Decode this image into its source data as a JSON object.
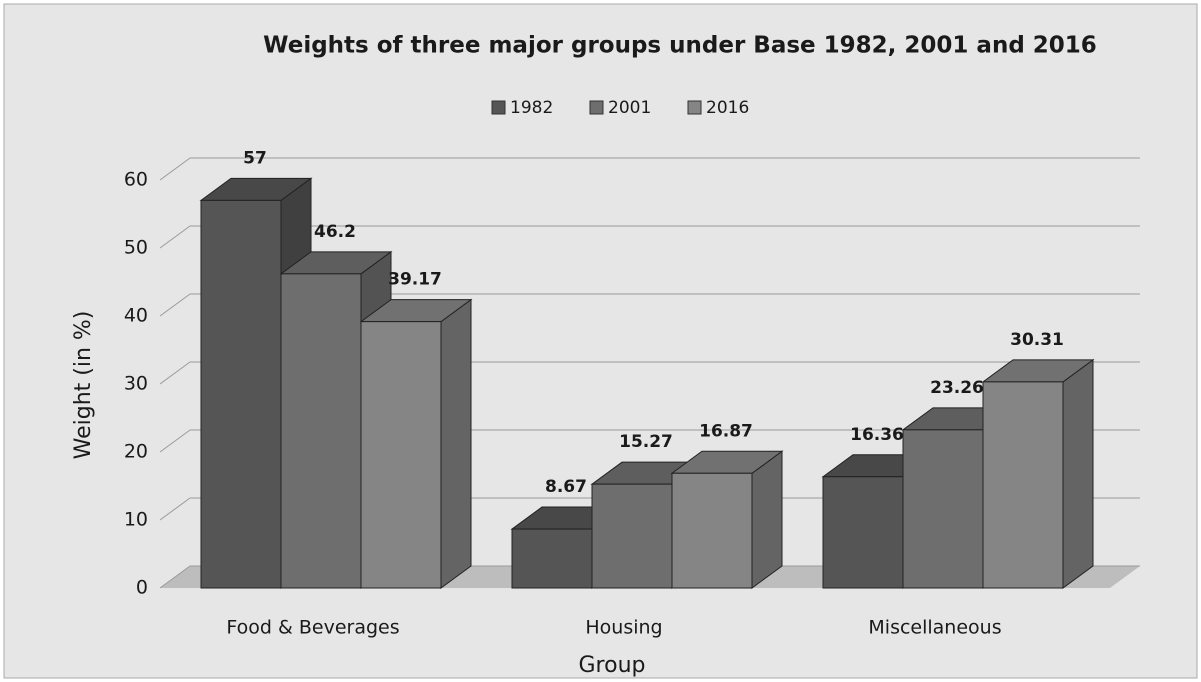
{
  "chart_data": {
    "type": "bar3d",
    "title": "Weights of three major groups under Base 1982, 2001 and 2016",
    "categories": [
      "Food & Beverages",
      "Housing",
      "Miscellaneous"
    ],
    "series": [
      {
        "name": "1982",
        "color": "#555555",
        "values": [
          57,
          8.67,
          16.36
        ]
      },
      {
        "name": "2001",
        "color": "#6e6e6e",
        "values": [
          46.2,
          15.27,
          23.26
        ]
      },
      {
        "name": "2016",
        "color": "#858585",
        "values": [
          39.17,
          16.87,
          30.31
        ]
      }
    ],
    "ylabel": "Weight (in %)",
    "xlabel": "Group",
    "ylim": [
      0,
      60
    ],
    "yticks": [
      0,
      10,
      20,
      30,
      40,
      50,
      60
    ],
    "grid": true,
    "legend": "top"
  }
}
